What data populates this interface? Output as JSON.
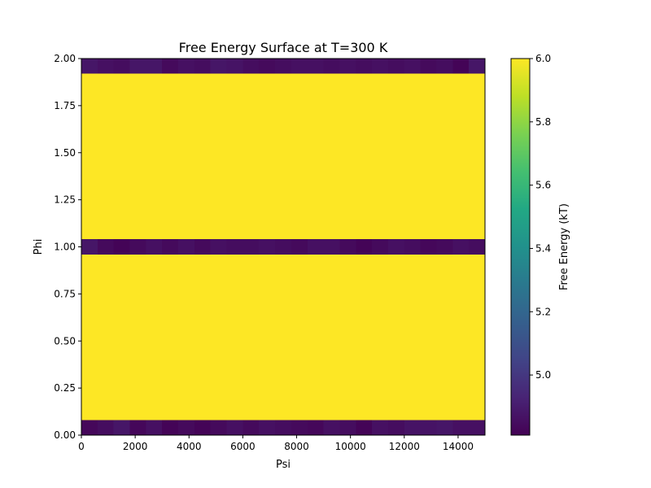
{
  "chart_data": {
    "type": "heatmap",
    "title": "Free Energy Surface at T=300 K",
    "xlabel": "Psi",
    "ylabel": "Phi",
    "colorbar_label": "Free Energy (kT)",
    "colormap": "viridis",
    "xlim": [
      0,
      15000
    ],
    "ylim": [
      0,
      2
    ],
    "clim": [
      4.81,
      6.0
    ],
    "xticks": [
      0,
      2000,
      4000,
      6000,
      8000,
      10000,
      12000,
      14000
    ],
    "xtick_labels": [
      "0",
      "2000",
      "4000",
      "6000",
      "8000",
      "10000",
      "12000",
      "14000"
    ],
    "yticks": [
      0,
      0.25,
      0.5,
      0.75,
      1.0,
      1.25,
      1.5,
      1.75,
      2.0
    ],
    "ytick_labels": [
      "0.00",
      "0.25",
      "0.50",
      "0.75",
      "1.00",
      "1.25",
      "1.50",
      "1.75",
      "2.00"
    ],
    "cbar_ticks": [
      5.0,
      5.2,
      5.4,
      5.6,
      5.8,
      6.0
    ],
    "cbar_tick_labels": [
      "5.0",
      "5.2",
      "5.4",
      "5.6",
      "5.8",
      "6.0"
    ],
    "grid": false,
    "x_bins": 25,
    "bands": [
      {
        "phi_range": [
          0.0,
          0.08
        ],
        "values": [
          4.83,
          4.85,
          4.88,
          4.83,
          4.86,
          4.82,
          4.84,
          4.82,
          4.84,
          4.86,
          4.84,
          4.86,
          4.85,
          4.84,
          4.83,
          4.86,
          4.85,
          4.82,
          4.86,
          4.85,
          4.87,
          4.87,
          4.88,
          4.86,
          4.86
        ]
      },
      {
        "phi_range": [
          0.08,
          0.96
        ],
        "values": [
          6.0,
          6.0,
          6.0,
          6.0,
          6.0,
          6.0,
          6.0,
          6.0,
          6.0,
          6.0,
          6.0,
          6.0,
          6.0,
          6.0,
          6.0,
          6.0,
          6.0,
          6.0,
          6.0,
          6.0,
          6.0,
          6.0,
          6.0,
          6.0,
          6.0
        ]
      },
      {
        "phi_range": [
          0.96,
          1.04
        ],
        "values": [
          4.88,
          4.84,
          4.82,
          4.84,
          4.86,
          4.84,
          4.86,
          4.84,
          4.86,
          4.85,
          4.85,
          4.86,
          4.85,
          4.84,
          4.86,
          4.86,
          4.84,
          4.82,
          4.84,
          4.86,
          4.85,
          4.83,
          4.84,
          4.86,
          4.85
        ]
      },
      {
        "phi_range": [
          1.04,
          1.92
        ],
        "values": [
          6.0,
          6.0,
          6.0,
          6.0,
          6.0,
          6.0,
          6.0,
          6.0,
          6.0,
          6.0,
          6.0,
          6.0,
          6.0,
          6.0,
          6.0,
          6.0,
          6.0,
          6.0,
          6.0,
          6.0,
          6.0,
          6.0,
          6.0,
          6.0,
          6.0
        ]
      },
      {
        "phi_range": [
          1.92,
          2.0
        ],
        "values": [
          4.88,
          4.86,
          4.85,
          4.88,
          4.88,
          4.84,
          4.86,
          4.85,
          4.88,
          4.87,
          4.85,
          4.84,
          4.85,
          4.86,
          4.86,
          4.85,
          4.86,
          4.85,
          4.86,
          4.85,
          4.86,
          4.84,
          4.85,
          4.82,
          4.88
        ]
      }
    ]
  }
}
